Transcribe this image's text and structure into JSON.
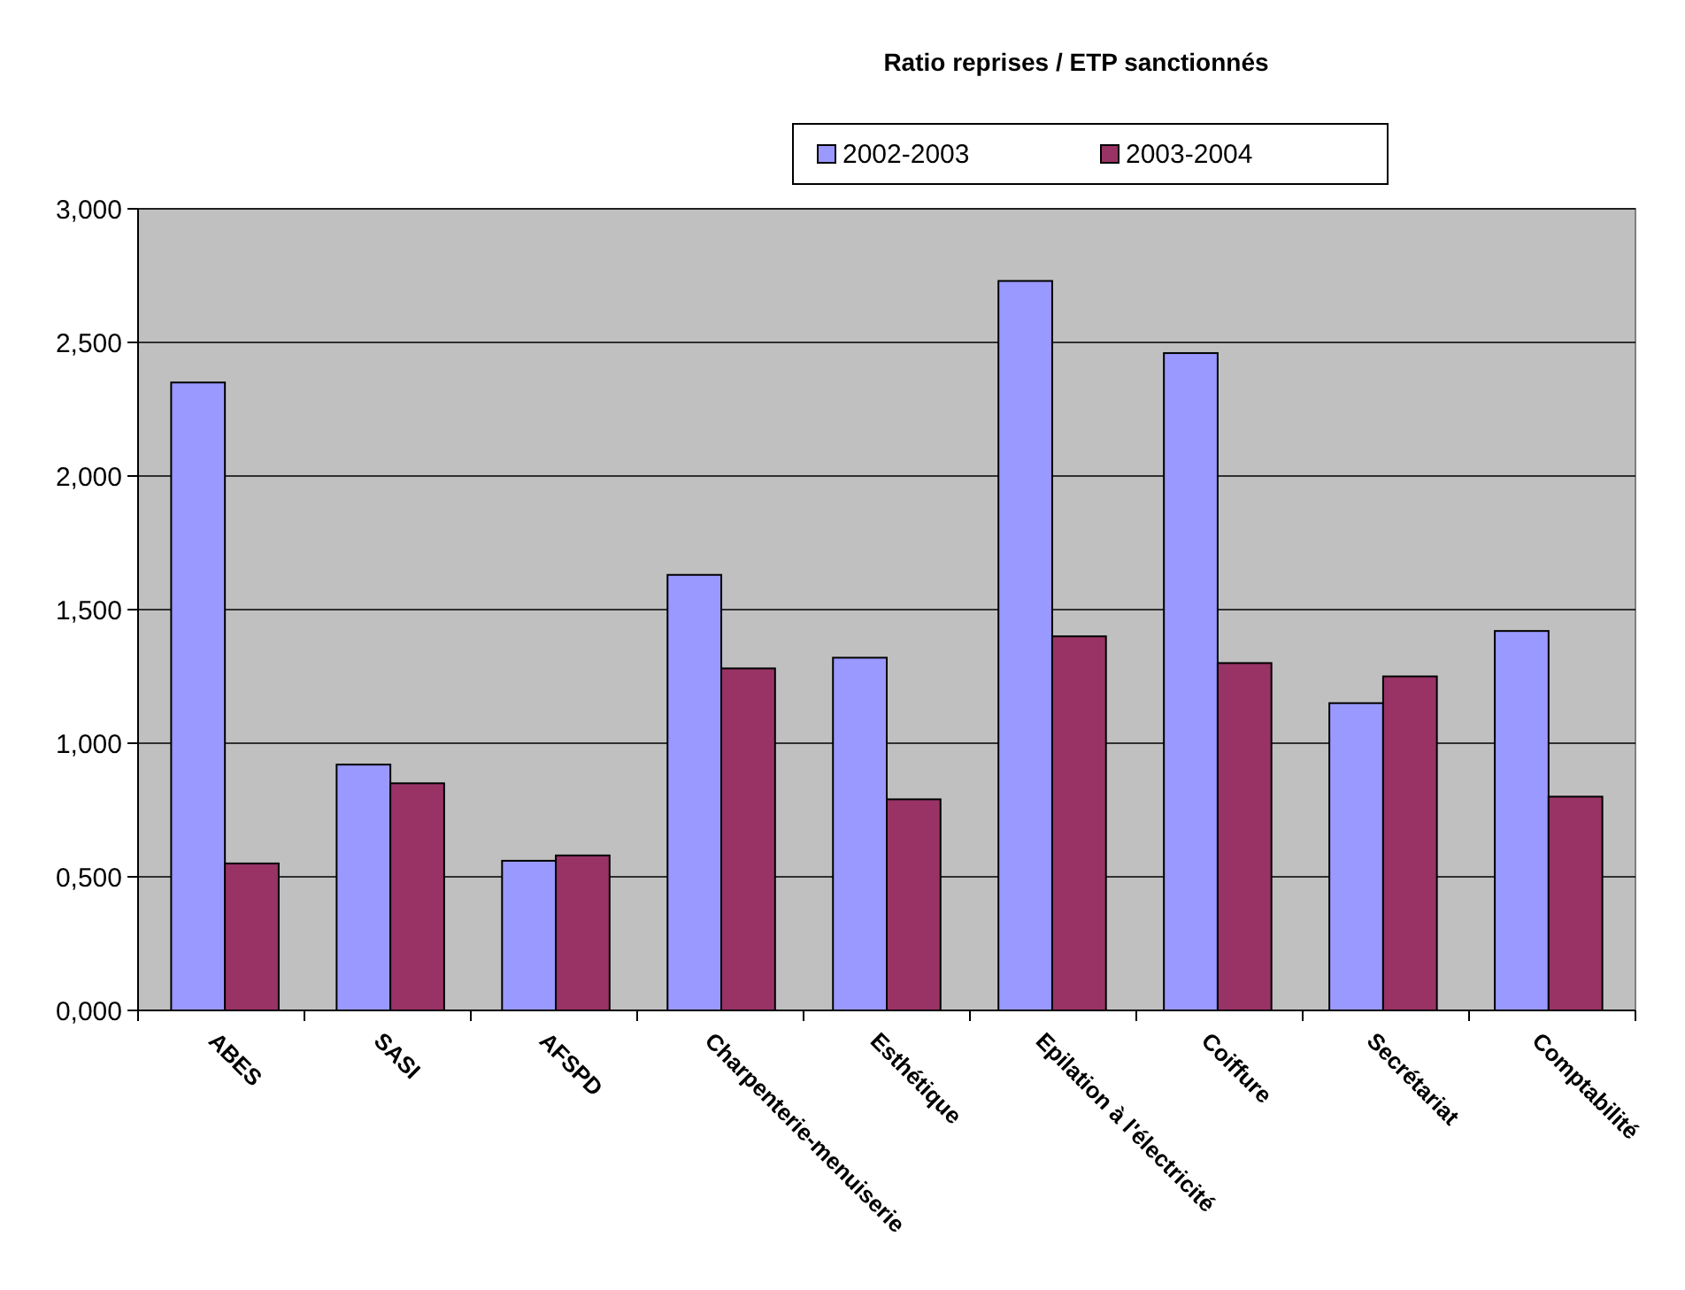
{
  "chart_data": {
    "type": "bar",
    "title": "Ratio reprises / ETP sanctionnés",
    "categories": [
      "ABES",
      "SASI",
      "AFSPD",
      "Charpenterie-menuiserie",
      "Esthétique",
      "Epilation à l'électricité",
      "Coiffure",
      "Secrétariat",
      "Comptabilité"
    ],
    "series": [
      {
        "name": "2002-2003",
        "color": "#9999ff",
        "values": [
          2.35,
          0.92,
          0.56,
          1.63,
          1.32,
          2.73,
          2.46,
          1.15,
          1.42
        ]
      },
      {
        "name": "2003-2004",
        "color": "#993366",
        "values": [
          0.55,
          0.85,
          0.58,
          1.28,
          0.79,
          1.4,
          1.3,
          1.25,
          0.8
        ]
      }
    ],
    "ylim": [
      0,
      3
    ],
    "yticks": [
      {
        "value": 0,
        "label": "0,000"
      },
      {
        "value": 0.5,
        "label": "0,500"
      },
      {
        "value": 1,
        "label": "1,000"
      },
      {
        "value": 1.5,
        "label": "1,500"
      },
      {
        "value": 2,
        "label": "2,000"
      },
      {
        "value": 2.5,
        "label": "2,500"
      },
      {
        "value": 3,
        "label": "3,000"
      }
    ],
    "grid": "y",
    "legend": "top"
  }
}
